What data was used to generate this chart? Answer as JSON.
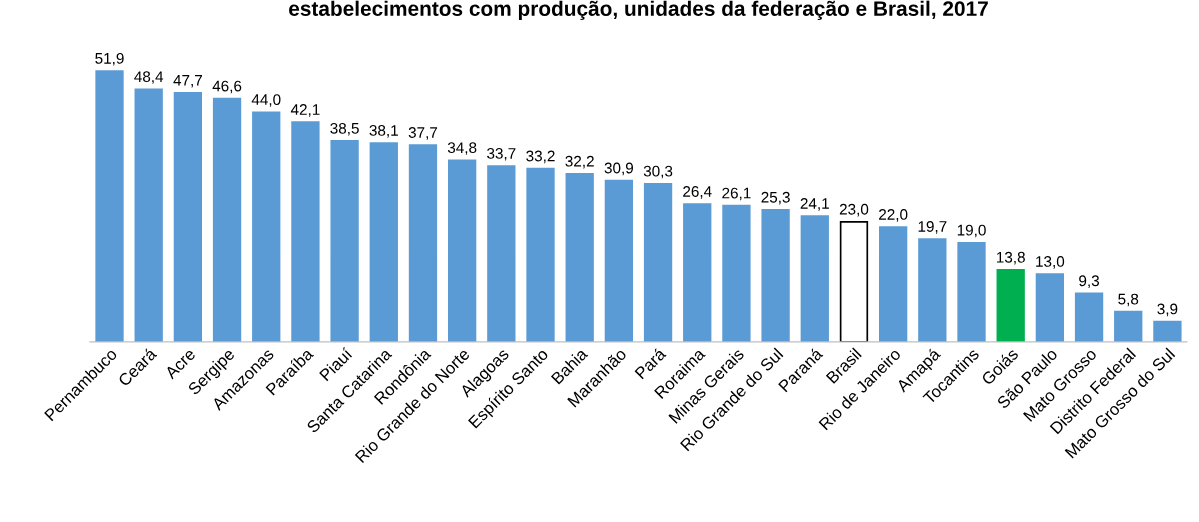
{
  "chart_data": {
    "type": "bar",
    "title": "estabelecimentos com produção, unidades da federação e Brasil, 2017",
    "categories": [
      "Pernambuco",
      "Ceará",
      "Acre",
      "Sergipe",
      "Amazonas",
      "Paraíba",
      "Piauí",
      "Santa Catarina",
      "Rondônia",
      "Rio Grande do Norte",
      "Alagoas",
      "Espírito Santo",
      "Bahia",
      "Maranhão",
      "Pará",
      "Roraima",
      "Minas Gerais",
      "Rio Grande do Sul",
      "Paraná",
      "Brasil",
      "Rio de Janeiro",
      "Amapá",
      "Tocantins",
      "Goiás",
      "São Paulo",
      "Mato Grosso",
      "Distrito Federal",
      "Mato Grosso do Sul"
    ],
    "values": [
      51.9,
      48.4,
      47.7,
      46.6,
      44.0,
      42.1,
      38.5,
      38.1,
      37.7,
      34.8,
      33.7,
      33.2,
      32.2,
      30.9,
      30.3,
      26.4,
      26.1,
      25.3,
      24.1,
      23.0,
      22.0,
      19.7,
      19.0,
      13.8,
      13.0,
      9.3,
      5.8,
      3.9
    ],
    "value_labels": [
      "51,9",
      "48,4",
      "47,7",
      "46,6",
      "44,0",
      "42,1",
      "38,5",
      "38,1",
      "37,7",
      "34,8",
      "33,7",
      "33,2",
      "32,2",
      "30,9",
      "30,3",
      "26,4",
      "26,1",
      "25,3",
      "24,1",
      "23,0",
      "22,0",
      "19,7",
      "19,0",
      "13,8",
      "13,0",
      "9,3",
      "5,8",
      "3,9"
    ],
    "colors": [
      "#5b9bd5",
      "#5b9bd5",
      "#5b9bd5",
      "#5b9bd5",
      "#5b9bd5",
      "#5b9bd5",
      "#5b9bd5",
      "#5b9bd5",
      "#5b9bd5",
      "#5b9bd5",
      "#5b9bd5",
      "#5b9bd5",
      "#5b9bd5",
      "#5b9bd5",
      "#5b9bd5",
      "#5b9bd5",
      "#5b9bd5",
      "#5b9bd5",
      "#5b9bd5",
      "#ffffff",
      "#5b9bd5",
      "#5b9bd5",
      "#5b9bd5",
      "#00b050",
      "#5b9bd5",
      "#5b9bd5",
      "#5b9bd5",
      "#5b9bd5"
    ],
    "grid": false,
    "legend": false,
    "tick_labels": "x"
  }
}
